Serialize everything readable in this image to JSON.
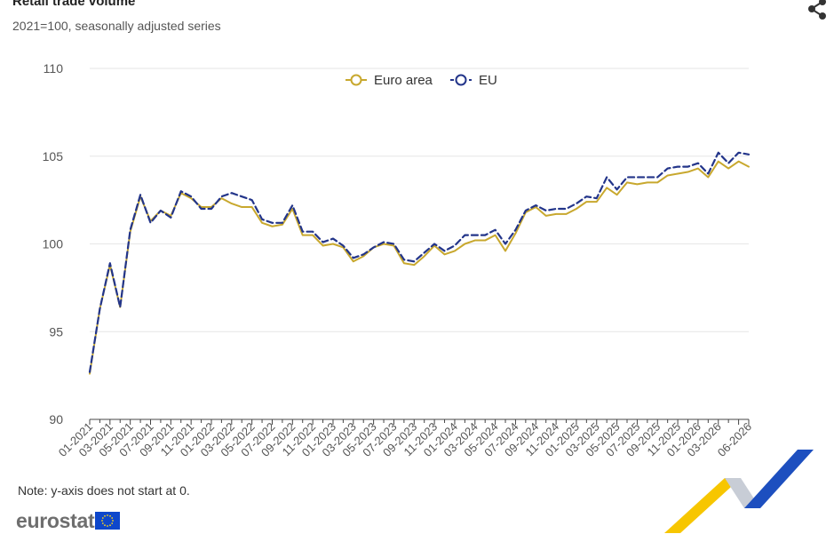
{
  "header": {
    "title": "Retail trade volume",
    "subtitle": "2021=100, seasonally adjusted series"
  },
  "note": "Note: y-axis does not start at 0.",
  "logo": {
    "text": "eurostat"
  },
  "icons": {
    "share": "share-icon",
    "flag": "eu-flag-icon"
  },
  "colors": {
    "euro_area": "#c8a82e",
    "eu": "#23358a",
    "gridline": "#e6e6e6",
    "axis": "#444444",
    "flag_blue": "#0e47cb",
    "flag_star": "#ffd617",
    "corner_yellow": "#f7c600",
    "corner_blue": "#1d4fbf",
    "corner_grey": "#c8cdd6"
  },
  "chart_data": {
    "type": "line",
    "ylim": [
      90,
      110
    ],
    "yticks": [
      "90",
      "95",
      "100",
      "105",
      "110"
    ],
    "x_start": "01-2021",
    "x_end": "06-2026",
    "tick_labels": [
      "01-2021",
      "03-2021",
      "05-2021",
      "07-2021",
      "09-2021",
      "11-2021",
      "01-2022",
      "03-2022",
      "05-2022",
      "07-2022",
      "09-2022",
      "11-2022",
      "01-2023",
      "03-2023",
      "05-2023",
      "07-2023",
      "09-2023",
      "11-2023",
      "01-2024",
      "03-2024",
      "05-2024",
      "07-2024",
      "09-2024",
      "11-2024",
      "01-2025",
      "03-2025",
      "05-2025",
      "07-2025",
      "09-2025",
      "11-2025",
      "01-2026",
      "03-2026",
      "06-2026"
    ],
    "legend_position": "top-center",
    "grid": true,
    "series": [
      {
        "name": "Euro area",
        "values": [
          92.6,
          96.3,
          98.8,
          96.4,
          100.7,
          102.7,
          101.3,
          101.9,
          101.6,
          102.9,
          102.6,
          102.1,
          102.1,
          102.6,
          102.3,
          102.1,
          102.1,
          101.2,
          101.0,
          101.1,
          102.0,
          100.5,
          100.5,
          99.9,
          100.0,
          99.8,
          99.0,
          99.3,
          99.8,
          100.0,
          99.9,
          98.9,
          98.8,
          99.3,
          99.9,
          99.4,
          99.6,
          100.0,
          100.2,
          100.2,
          100.5,
          99.6,
          100.6,
          101.8,
          102.1,
          101.6,
          101.7,
          101.7,
          102.0,
          102.4,
          102.4,
          103.2,
          102.8,
          103.5,
          103.4,
          103.5,
          103.5,
          103.9,
          104.0,
          104.1,
          104.3,
          103.8,
          104.7,
          104.3,
          104.7,
          104.4
        ]
      },
      {
        "name": "EU",
        "values": [
          92.7,
          96.3,
          98.9,
          96.4,
          100.8,
          102.8,
          101.2,
          101.9,
          101.5,
          103.0,
          102.7,
          102.0,
          102.0,
          102.7,
          102.9,
          102.7,
          102.5,
          101.4,
          101.2,
          101.2,
          102.2,
          100.7,
          100.7,
          100.1,
          100.3,
          99.9,
          99.2,
          99.4,
          99.8,
          100.1,
          100.0,
          99.1,
          99.0,
          99.5,
          100.0,
          99.6,
          99.9,
          100.5,
          100.5,
          100.5,
          100.8,
          100.0,
          100.8,
          101.9,
          102.2,
          101.9,
          102.0,
          102.0,
          102.3,
          102.7,
          102.6,
          103.8,
          103.1,
          103.8,
          103.8,
          103.8,
          103.8,
          104.3,
          104.4,
          104.4,
          104.6,
          104.0,
          105.2,
          104.6,
          105.2,
          105.1
        ]
      }
    ]
  }
}
